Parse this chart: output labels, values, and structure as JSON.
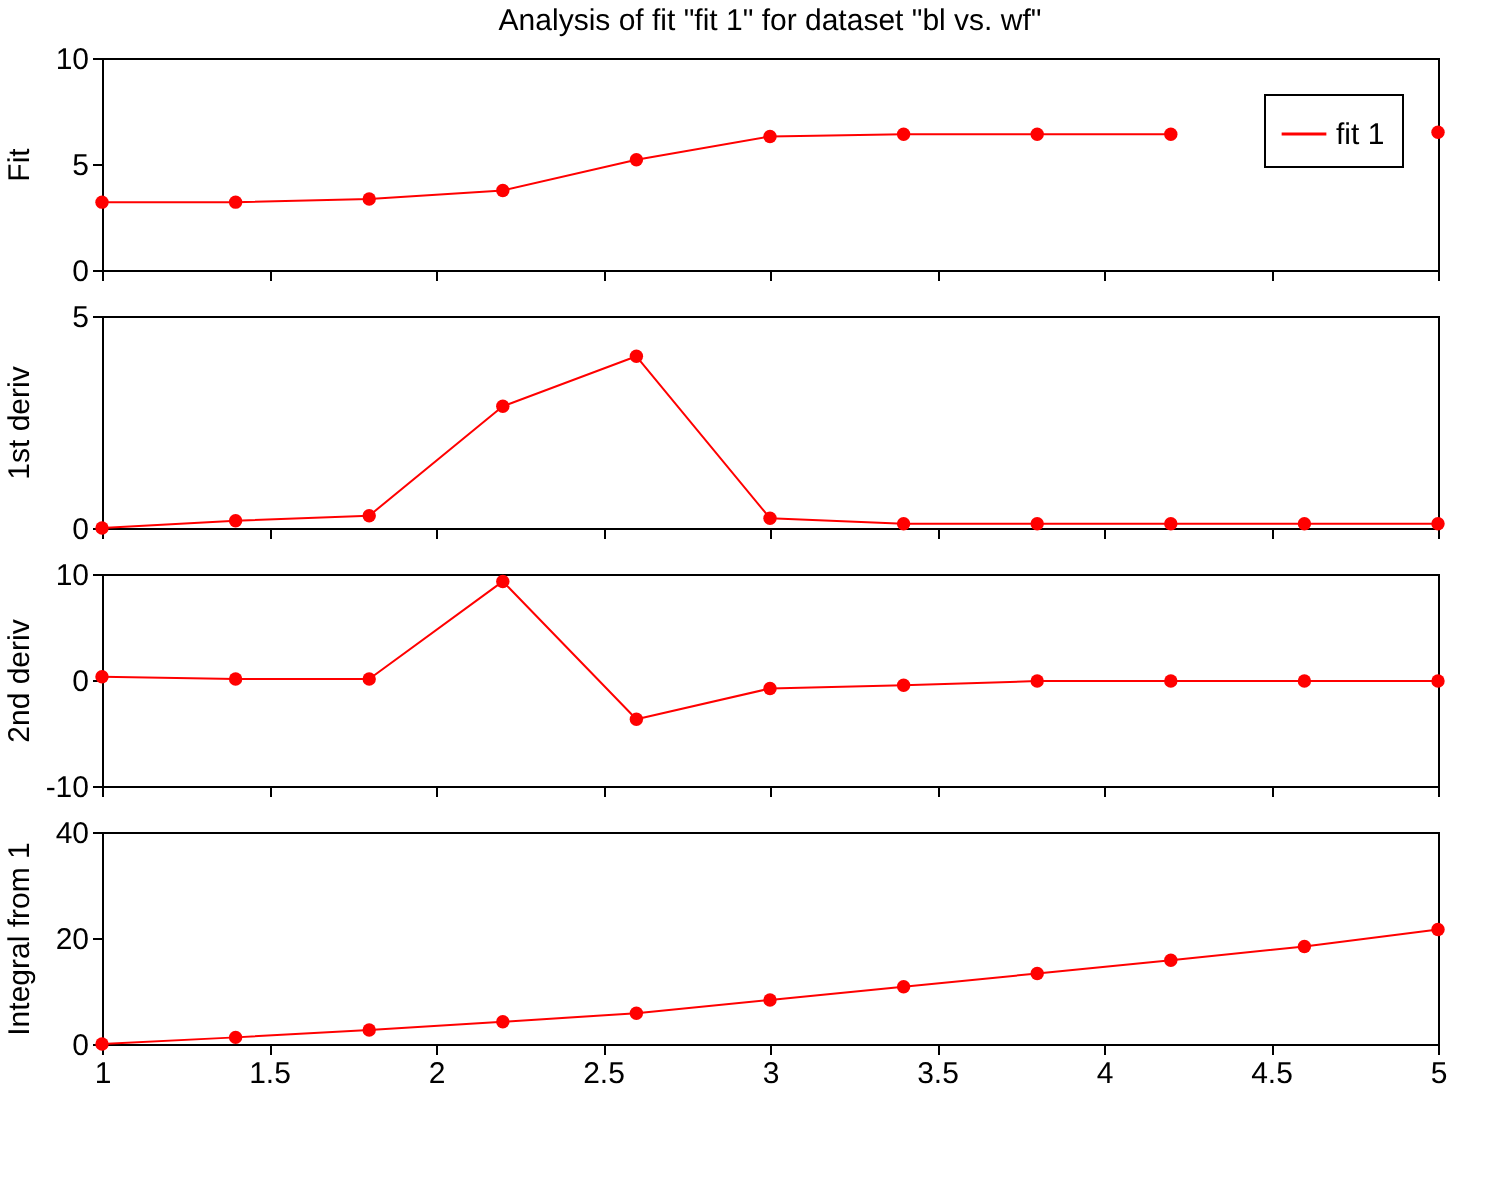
{
  "chart_data": [
    {
      "type": "line",
      "title": "Analysis of fit \"fit 1\" for dataset \"bl vs. wf\"",
      "ylabel": "Fit",
      "x": [
        1,
        1.4,
        1.8,
        2.2,
        2.6,
        3,
        3.4,
        3.8,
        4.2,
        4.6,
        5
      ],
      "series": [
        {
          "name": "fit 1",
          "color": "#ff0000",
          "values": [
            3.2,
            3.2,
            3.35,
            3.75,
            5.2,
            6.3,
            6.4,
            6.4,
            6.4,
            null,
            6.5
          ]
        }
      ],
      "xlim": [
        1,
        5
      ],
      "xticks": [
        1,
        1.5,
        2,
        2.5,
        3,
        3.5,
        4,
        4.5,
        5
      ],
      "ylim": [
        0,
        10
      ],
      "yticks": [
        0,
        5,
        10
      ],
      "tick_labels": "y",
      "legend": "top right",
      "marker": "circle",
      "line_style": "solid"
    },
    {
      "type": "line",
      "ylabel": "1st deriv",
      "x": [
        1,
        1.4,
        1.8,
        2.2,
        2.6,
        3,
        3.4,
        3.8,
        4.2,
        4.6,
        5
      ],
      "series": [
        {
          "color": "#ff0000",
          "values": [
            0,
            0.17,
            0.29,
            2.87,
            4.05,
            0.23,
            0.1,
            0.1,
            0.1,
            0.1,
            0.1
          ]
        }
      ],
      "xlim": [
        1,
        5
      ],
      "xticks": [
        1,
        1.5,
        2,
        2.5,
        3,
        3.5,
        4,
        4.5,
        5
      ],
      "ylim": [
        0,
        5
      ],
      "yticks": [
        0,
        5
      ],
      "tick_labels": "y",
      "marker": "circle",
      "line_style": "solid"
    },
    {
      "type": "line",
      "ylabel": "2nd deriv",
      "x": [
        1,
        1.4,
        1.8,
        2.2,
        2.6,
        3,
        3.4,
        3.8,
        4.2,
        4.6,
        5
      ],
      "series": [
        {
          "color": "#ff0000",
          "values": [
            0.3,
            0.1,
            0.1,
            9.3,
            -3.7,
            -0.8,
            -0.5,
            -0.1,
            -0.1,
            -0.1,
            -0.1
          ]
        }
      ],
      "xlim": [
        1,
        5
      ],
      "xticks": [
        1,
        1.5,
        2,
        2.5,
        3,
        3.5,
        4,
        4.5,
        5
      ],
      "ylim": [
        -10,
        10
      ],
      "yticks": [
        -10,
        0,
        10
      ],
      "tick_labels": "y",
      "marker": "circle",
      "line_style": "solid"
    },
    {
      "type": "line",
      "ylabel": "Integral from 1",
      "x": [
        1,
        1.4,
        1.8,
        2.2,
        2.6,
        3,
        3.4,
        3.8,
        4.2,
        4.6,
        5
      ],
      "series": [
        {
          "color": "#ff0000",
          "values": [
            0,
            1.25,
            2.65,
            4.2,
            5.8,
            8.3,
            10.8,
            13.3,
            15.8,
            18.4,
            21.6
          ]
        }
      ],
      "xlim": [
        1,
        5
      ],
      "xticks": [
        1,
        1.5,
        2,
        2.5,
        3,
        3.5,
        4,
        4.5,
        5
      ],
      "ylim": [
        0,
        40
      ],
      "yticks": [
        0,
        20,
        40
      ],
      "marker": "circle",
      "line_style": "solid"
    }
  ]
}
